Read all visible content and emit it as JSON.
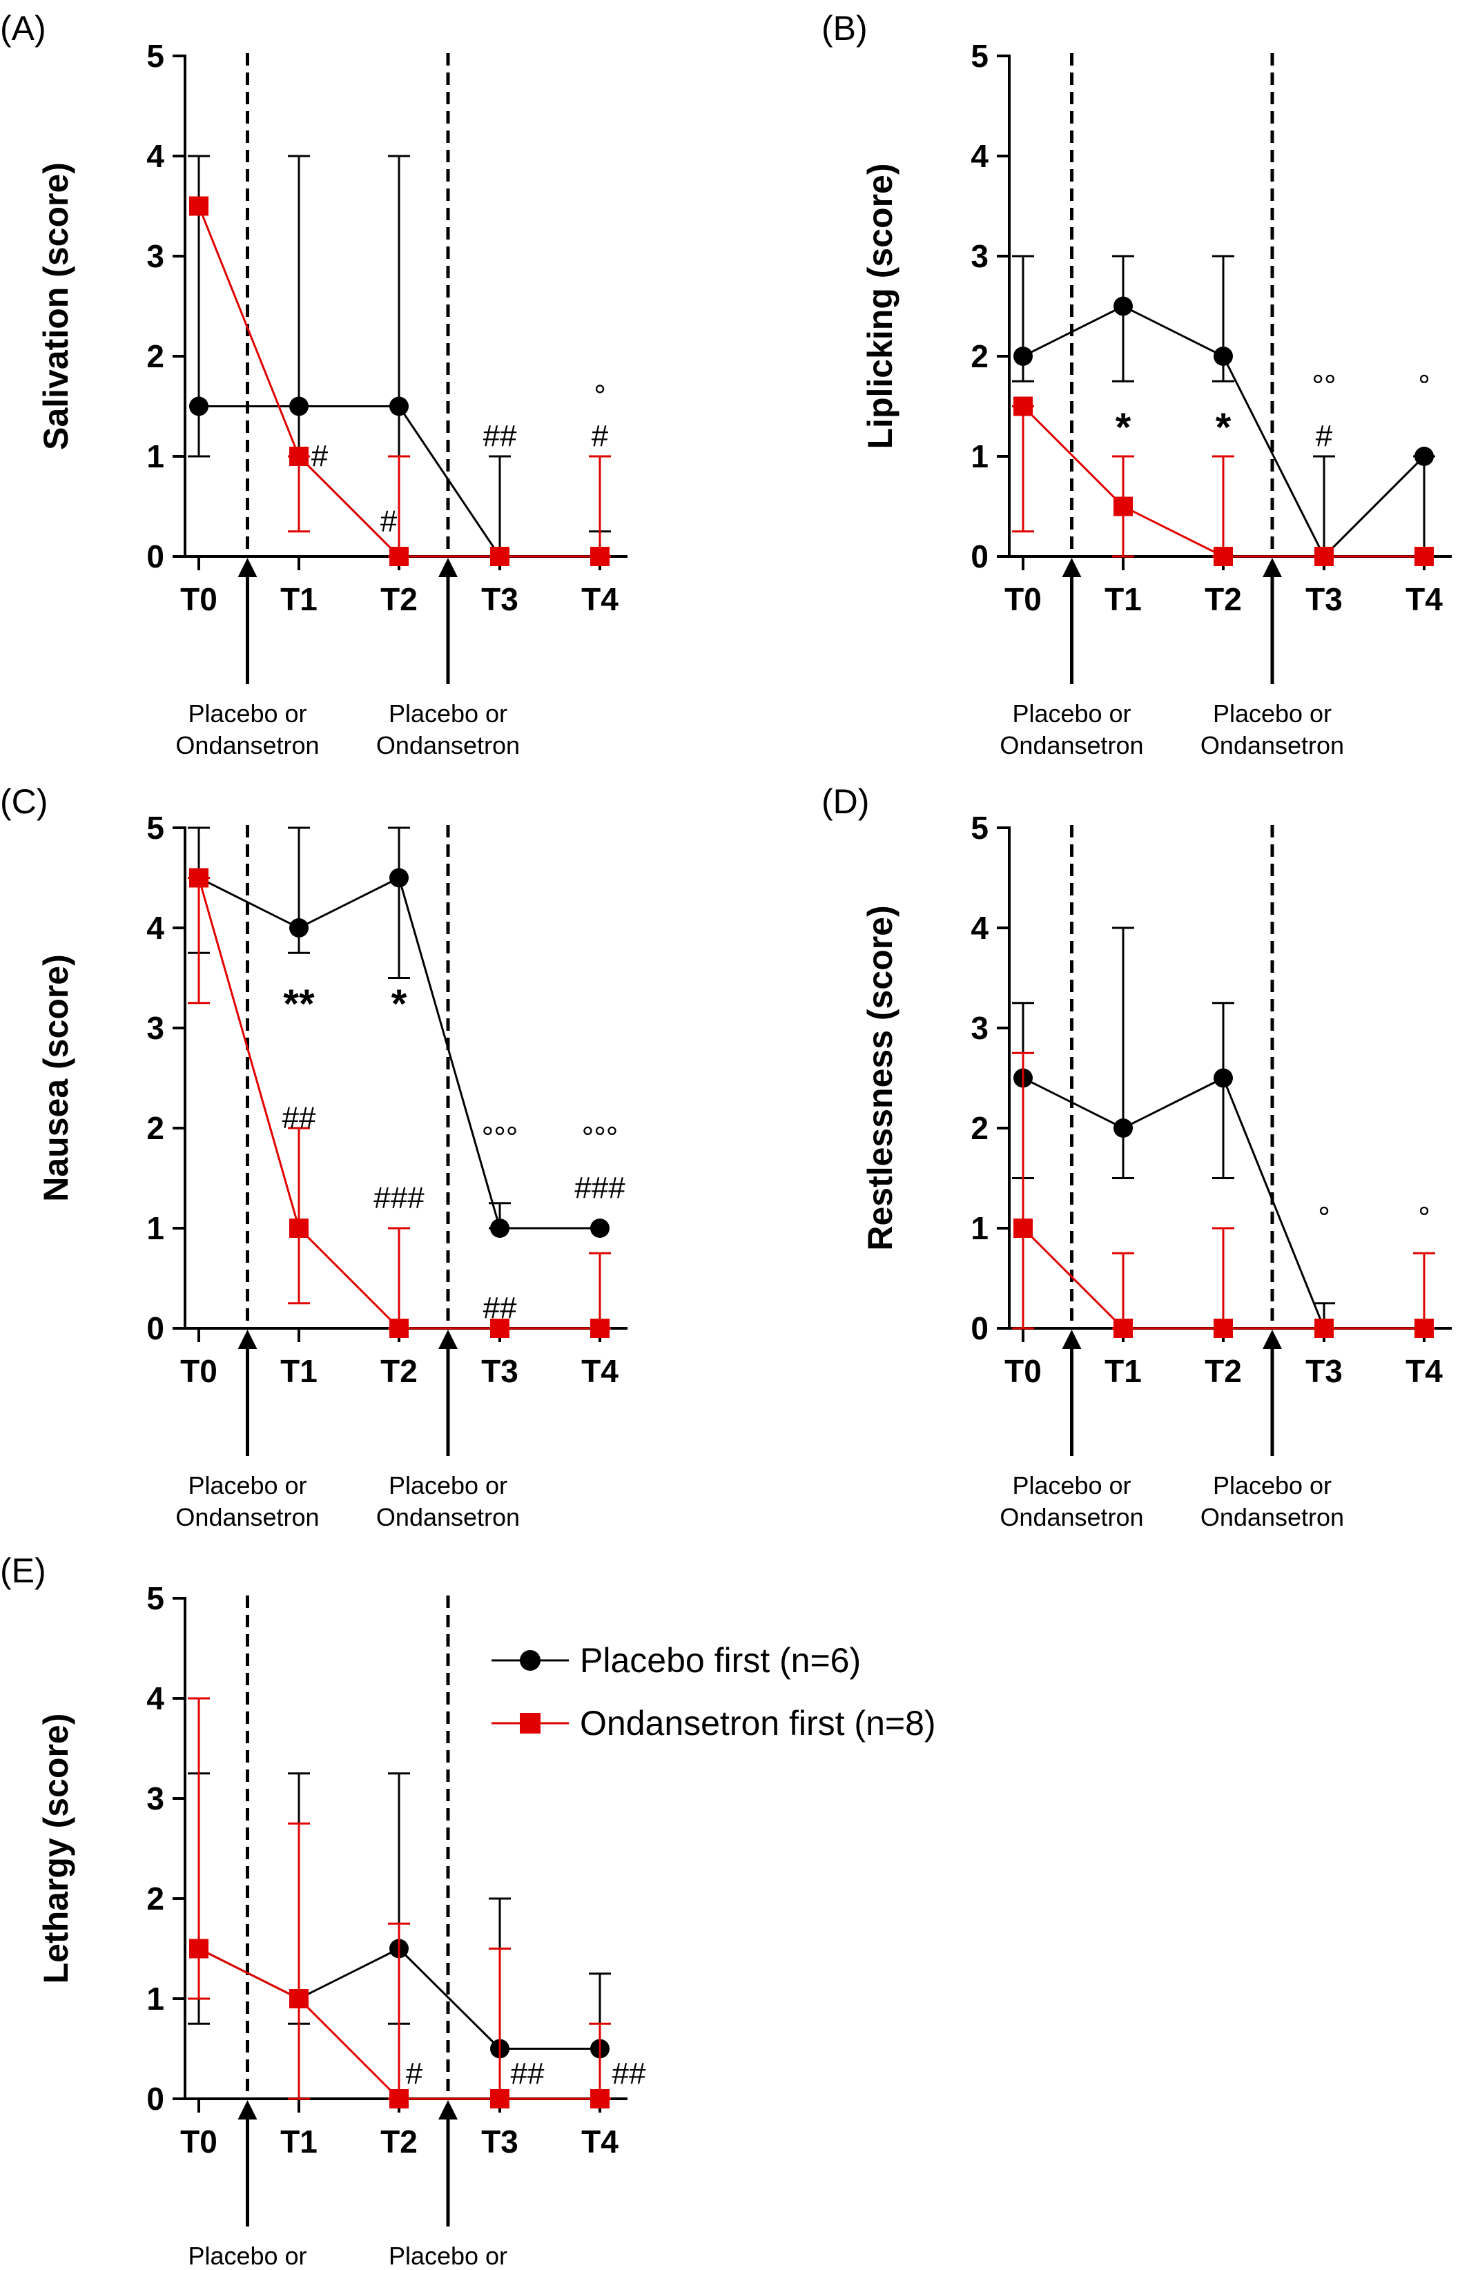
{
  "colors": {
    "placebo": "#000000",
    "ondansetron": "#e00000"
  },
  "legend": {
    "placebo": "Placebo first (n=6)",
    "ondansetron": "Ondansetron first (n=8)"
  },
  "dose_note": {
    "line1": "Placebo or",
    "line2": "Ondansetron"
  },
  "chart_data": [
    {
      "type": "line",
      "panel": "(A)",
      "ylabel": "Salivation (score)",
      "ylim": [
        0,
        5
      ],
      "yticks": [
        "0",
        "1",
        "2",
        "3",
        "4",
        "5"
      ],
      "categories": [
        "T0",
        "T1",
        "T2",
        "T3",
        "T4"
      ],
      "series": [
        {
          "name": "Placebo first (n=6)",
          "values": [
            1.5,
            1.5,
            1.5,
            0,
            0
          ],
          "err_low": [
            1,
            1,
            1,
            0,
            0
          ],
          "err_high": [
            4,
            4,
            4,
            1,
            0.25
          ]
        },
        {
          "name": "Ondansetron first (n=8)",
          "values": [
            3.5,
            1,
            0,
            0,
            0
          ],
          "err_low": [
            3.5,
            0.25,
            0,
            0,
            0
          ],
          "err_high": [
            3.5,
            1,
            1,
            0,
            1
          ]
        }
      ],
      "annotations": [
        {
          "text": "#",
          "cat": 1,
          "y": 1,
          "dx": 30
        },
        {
          "text": "#",
          "cat": 2,
          "y": 0.35,
          "dx": -15
        },
        {
          "text": "##",
          "cat": 3,
          "y": 1.2,
          "dx": 0
        },
        {
          "text": "#",
          "cat": 4,
          "y": 1.2,
          "dx": 0
        },
        {
          "text": "°",
          "cat": 4,
          "y": 1.6,
          "dx": 0
        }
      ]
    },
    {
      "type": "line",
      "panel": "(B)",
      "ylabel": "Liplicking (score)",
      "ylim": [
        0,
        5
      ],
      "yticks": [
        "0",
        "1",
        "2",
        "3",
        "4",
        "5"
      ],
      "categories": [
        "T0",
        "T1",
        "T2",
        "T3",
        "T4"
      ],
      "series": [
        {
          "name": "Placebo first (n=6)",
          "values": [
            2,
            2.5,
            2,
            0,
            1
          ],
          "err_low": [
            1.75,
            1.75,
            1.75,
            0,
            0
          ],
          "err_high": [
            3,
            3,
            3,
            1,
            1
          ]
        },
        {
          "name": "Ondansetron first (n=8)",
          "values": [
            1.5,
            0.5,
            0,
            0,
            0
          ],
          "err_low": [
            0.25,
            0,
            0,
            0,
            0
          ],
          "err_high": [
            1.5,
            1,
            1,
            0,
            0
          ]
        }
      ],
      "annotations": [
        {
          "text": "*",
          "cat": 1,
          "y": 1.25,
          "dx": 0,
          "cls": "star"
        },
        {
          "text": "*",
          "cat": 2,
          "y": 1.25,
          "dx": 0,
          "cls": "star"
        },
        {
          "text": "#",
          "cat": 3,
          "y": 1.2,
          "dx": 0
        },
        {
          "text": "°°",
          "cat": 3,
          "y": 1.7,
          "dx": 0
        },
        {
          "text": "°",
          "cat": 4,
          "y": 1.7,
          "dx": 0
        }
      ]
    },
    {
      "type": "line",
      "panel": "(C)",
      "ylabel": "Nausea (score)",
      "ylim": [
        0,
        5
      ],
      "yticks": [
        "0",
        "1",
        "2",
        "3",
        "4",
        "5"
      ],
      "categories": [
        "T0",
        "T1",
        "T2",
        "T3",
        "T4"
      ],
      "series": [
        {
          "name": "Placebo first (n=6)",
          "values": [
            4.5,
            4,
            4.5,
            1,
            1
          ],
          "err_low": [
            3.75,
            3.75,
            3.5,
            1,
            1
          ],
          "err_high": [
            5,
            5,
            5,
            1.25,
            1
          ]
        },
        {
          "name": "Ondansetron first (n=8)",
          "values": [
            4.5,
            1,
            0,
            0,
            0
          ],
          "err_low": [
            3.25,
            0.25,
            0,
            0,
            0
          ],
          "err_high": [
            4.5,
            2,
            1,
            0,
            0.75
          ]
        }
      ],
      "annotations": [
        {
          "text": "**",
          "cat": 1,
          "y": 3.2,
          "dx": 0,
          "cls": "star"
        },
        {
          "text": "*",
          "cat": 2,
          "y": 3.2,
          "dx": 0,
          "cls": "star"
        },
        {
          "text": "##",
          "cat": 1,
          "y": 2.1,
          "dx": 0
        },
        {
          "text": "###",
          "cat": 2,
          "y": 1.3,
          "dx": 0
        },
        {
          "text": "##",
          "cat": 3,
          "y": 0.2,
          "dx": 0
        },
        {
          "text": "°°°",
          "cat": 3,
          "y": 1.9,
          "dx": 0
        },
        {
          "text": "°°°",
          "cat": 4,
          "y": 1.9,
          "dx": 0
        },
        {
          "text": "###",
          "cat": 4,
          "y": 1.4,
          "dx": 0
        }
      ]
    },
    {
      "type": "line",
      "panel": "(D)",
      "ylabel": "Restlessness (score)",
      "ylim": [
        0,
        5
      ],
      "yticks": [
        "0",
        "1",
        "2",
        "3",
        "4",
        "5"
      ],
      "categories": [
        "T0",
        "T1",
        "T2",
        "T3",
        "T4"
      ],
      "series": [
        {
          "name": "Placebo first (n=6)",
          "values": [
            2.5,
            2,
            2.5,
            0,
            0
          ],
          "err_low": [
            1.5,
            1.5,
            1.5,
            0,
            0
          ],
          "err_high": [
            3.25,
            4,
            3.25,
            0.25,
            0
          ]
        },
        {
          "name": "Ondansetron first (n=8)",
          "values": [
            1,
            0,
            0,
            0,
            0
          ],
          "err_low": [
            0,
            0,
            0,
            0,
            0
          ],
          "err_high": [
            2.75,
            0.75,
            1,
            0,
            0.75
          ]
        }
      ],
      "annotations": [
        {
          "text": "°",
          "cat": 3,
          "y": 1.1,
          "dx": 0
        },
        {
          "text": "°",
          "cat": 4,
          "y": 1.1,
          "dx": 0
        }
      ]
    },
    {
      "type": "line",
      "panel": "(E)",
      "ylabel": "Lethargy (score)",
      "ylim": [
        0,
        5
      ],
      "yticks": [
        "0",
        "1",
        "2",
        "3",
        "4",
        "5"
      ],
      "categories": [
        "T0",
        "T1",
        "T2",
        "T3",
        "T4"
      ],
      "series": [
        {
          "name": "Placebo first (n=6)",
          "values": [
            1.5,
            1,
            1.5,
            0.5,
            0.5
          ],
          "err_low": [
            0.75,
            0.75,
            0.75,
            0,
            0
          ],
          "err_high": [
            3.25,
            3.25,
            3.25,
            2,
            1.25
          ]
        },
        {
          "name": "Ondansetron first (n=8)",
          "values": [
            1.5,
            1,
            0,
            0,
            0
          ],
          "err_low": [
            1,
            0,
            0,
            0,
            0
          ],
          "err_high": [
            4,
            2.75,
            1.75,
            1.5,
            0.75
          ]
        }
      ],
      "annotations": [
        {
          "text": "#",
          "cat": 2,
          "y": 0.25,
          "dx": 22
        },
        {
          "text": "##",
          "cat": 3,
          "y": 0.25,
          "dx": 40
        },
        {
          "text": "##",
          "cat": 4,
          "y": 0.25,
          "dx": 42
        }
      ]
    }
  ]
}
